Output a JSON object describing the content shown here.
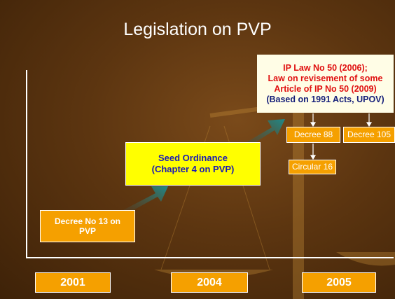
{
  "title": "Legislation on PVP",
  "boxes": {
    "decree13": [
      "Decree No 13 on",
      "PVP"
    ],
    "seed_ordinance": [
      "Seed Ordinance",
      "(Chapter 4 on PVP)"
    ],
    "ip_law": [
      "IP Law No 50 (2006);",
      "Law on revisement of some",
      "Article of IP No 50 (2009)",
      "(Based on 1991 Acts, UPOV)"
    ],
    "decree88": "Decree 88",
    "decree105": "Decree 105",
    "circular16": "Circular 16"
  },
  "years": [
    "2001",
    "2004",
    "2005"
  ]
}
